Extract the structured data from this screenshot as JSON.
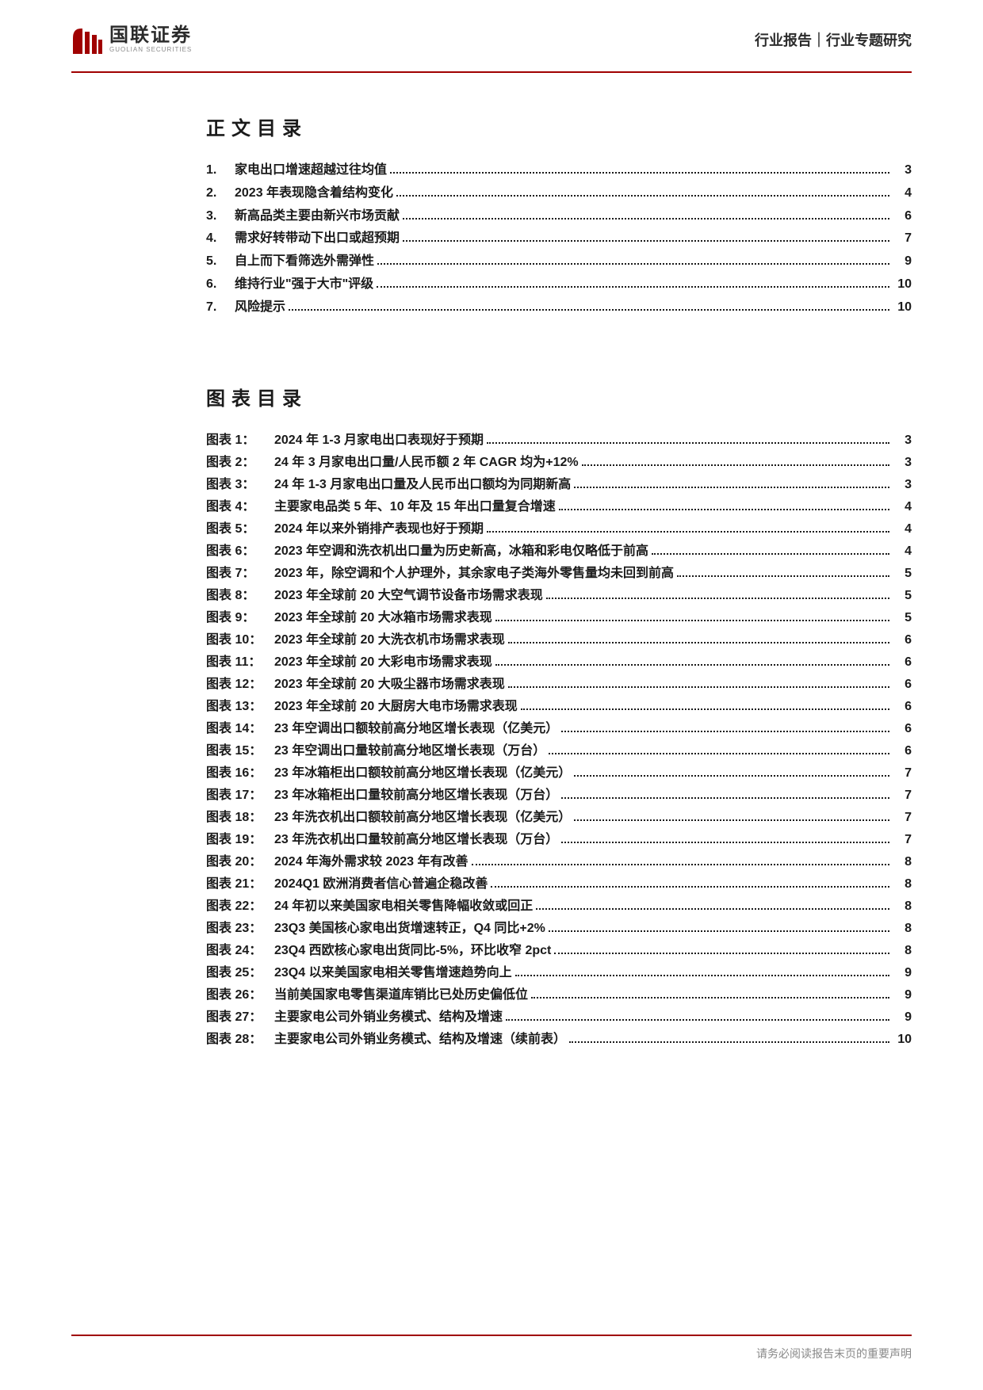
{
  "header": {
    "logo_cn": "国联证券",
    "logo_en": "GUOLIAN SECURITIES",
    "right": "行业报告｜行业专题研究",
    "accent_color": "#a00000"
  },
  "toc": {
    "heading": "正文目录",
    "items": [
      {
        "num": "1.",
        "title": "家电出口增速超越过往均值",
        "page": "3"
      },
      {
        "num": "2.",
        "title": "2023 年表现隐含着结构变化",
        "page": "4"
      },
      {
        "num": "3.",
        "title": "新高品类主要由新兴市场贡献",
        "page": "6"
      },
      {
        "num": "4.",
        "title": "需求好转带动下出口或超预期",
        "page": "7"
      },
      {
        "num": "5.",
        "title": "自上而下看筛选外需弹性",
        "page": "9"
      },
      {
        "num": "6.",
        "title": "维持行业\"强于大市\"评级",
        "page": "10"
      },
      {
        "num": "7.",
        "title": "风险提示",
        "page": "10"
      }
    ]
  },
  "figs": {
    "heading": "图表目录",
    "items": [
      {
        "num": "图表 1：",
        "title": "2024 年 1-3 月家电出口表现好于预期",
        "page": "3"
      },
      {
        "num": "图表 2：",
        "title": "24 年 3 月家电出口量/人民币额 2 年 CAGR 均为+12%",
        "page": "3"
      },
      {
        "num": "图表 3：",
        "title": "24 年 1-3 月家电出口量及人民币出口额均为同期新高",
        "page": "3"
      },
      {
        "num": "图表 4：",
        "title": "主要家电品类 5 年、10 年及 15 年出口量复合增速",
        "page": "4"
      },
      {
        "num": "图表 5：",
        "title": "2024 年以来外销排产表现也好于预期",
        "page": "4"
      },
      {
        "num": "图表 6：",
        "title": "2023 年空调和洗衣机出口量为历史新高，冰箱和彩电仅略低于前高",
        "page": "4"
      },
      {
        "num": "图表 7：",
        "title": "2023 年，除空调和个人护理外，其余家电子类海外零售量均未回到前高",
        "page": "5"
      },
      {
        "num": "图表 8：",
        "title": "2023 年全球前 20 大空气调节设备市场需求表现",
        "page": "5"
      },
      {
        "num": "图表 9：",
        "title": "2023 年全球前 20 大冰箱市场需求表现",
        "page": "5"
      },
      {
        "num": "图表 10：",
        "title": "2023 年全球前 20 大洗衣机市场需求表现",
        "page": "6"
      },
      {
        "num": "图表 11：",
        "title": "2023 年全球前 20 大彩电市场需求表现",
        "page": "6"
      },
      {
        "num": "图表 12：",
        "title": "2023 年全球前 20 大吸尘器市场需求表现",
        "page": "6"
      },
      {
        "num": "图表 13：",
        "title": "2023 年全球前 20 大厨房大电市场需求表现",
        "page": "6"
      },
      {
        "num": "图表 14：",
        "title": "23 年空调出口额较前高分地区增长表现（亿美元）",
        "page": "6"
      },
      {
        "num": "图表 15：",
        "title": "23 年空调出口量较前高分地区增长表现（万台）",
        "page": "6"
      },
      {
        "num": "图表 16：",
        "title": "23 年冰箱柜出口额较前高分地区增长表现（亿美元）",
        "page": "7"
      },
      {
        "num": "图表 17：",
        "title": "23 年冰箱柜出口量较前高分地区增长表现（万台）",
        "page": "7"
      },
      {
        "num": "图表 18：",
        "title": "23 年洗衣机出口额较前高分地区增长表现（亿美元）",
        "page": "7"
      },
      {
        "num": "图表 19：",
        "title": "23 年洗衣机出口量较前高分地区增长表现（万台）",
        "page": "7"
      },
      {
        "num": "图表 20：",
        "title": "2024 年海外需求较 2023 年有改善",
        "page": "8"
      },
      {
        "num": "图表 21：",
        "title": "2024Q1 欧洲消费者信心普遍企稳改善",
        "page": "8"
      },
      {
        "num": "图表 22：",
        "title": "24 年初以来美国家电相关零售降幅收敛或回正",
        "page": "8"
      },
      {
        "num": "图表 23：",
        "title": "23Q3 美国核心家电出货增速转正，Q4 同比+2%",
        "page": "8"
      },
      {
        "num": "图表 24：",
        "title": "23Q4 西欧核心家电出货同比-5%，环比收窄 2pct",
        "page": "8"
      },
      {
        "num": "图表 25：",
        "title": "23Q4 以来美国家电相关零售增速趋势向上",
        "page": "9"
      },
      {
        "num": "图表 26：",
        "title": "当前美国家电零售渠道库销比已处历史偏低位",
        "page": "9"
      },
      {
        "num": "图表 27：",
        "title": "主要家电公司外销业务模式、结构及增速",
        "page": "9"
      },
      {
        "num": "图表 28：",
        "title": "主要家电公司外销业务模式、结构及增速（续前表）",
        "page": "10"
      }
    ]
  },
  "footer": "请务必阅读报告末页的重要声明"
}
